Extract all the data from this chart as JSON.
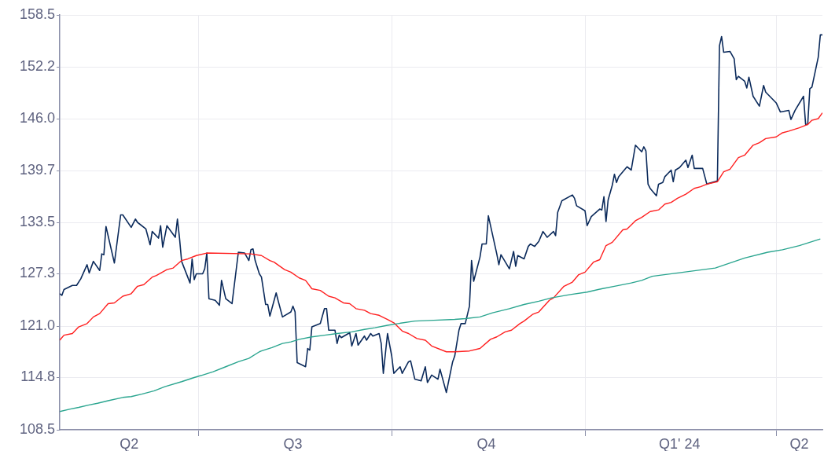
{
  "chart_data": {
    "type": "line",
    "xlim": [
      "2023-04-26",
      "2024-04-23"
    ],
    "xticks": [
      {
        "value": "2023-05-29",
        "label": "Q2"
      },
      {
        "value": "2023-07-01",
        "label": null
      },
      {
        "value": "2023-08-15",
        "label": "Q3"
      },
      {
        "value": "2023-10-01",
        "label": null
      },
      {
        "value": "2023-11-15",
        "label": "Q4"
      },
      {
        "value": "2024-01-01",
        "label": null
      },
      {
        "value": "2024-02-15",
        "label": "Q1' 24"
      },
      {
        "value": "2024-04-01",
        "label": null
      },
      {
        "value": "2024-04-12",
        "label": "Q2"
      }
    ],
    "ylim": [
      108.5,
      158.5
    ],
    "yticks": [
      108.5,
      114.8,
      {
        "value": 121.0,
        "label": "121.0"
      },
      127.3,
      133.5,
      139.7,
      {
        "value": 146.0,
        "label": "146.0"
      },
      152.2,
      158.5
    ],
    "grid": true,
    "legend": false,
    "series": [
      {
        "color": "#2aa58f",
        "x": [
          "2023-04-26",
          "2023-05-01",
          "2023-05-05",
          "2023-05-10",
          "2023-05-14",
          "2023-05-19",
          "2023-05-26",
          "2023-05-30",
          "2023-06-04",
          "2023-06-10",
          "2023-06-15",
          "2023-06-23",
          "2023-06-29",
          "2023-07-03",
          "2023-07-08",
          "2023-07-14",
          "2023-07-20",
          "2023-07-25",
          "2023-07-30",
          "2023-07-31",
          "2023-08-05",
          "2023-08-10",
          "2023-08-14",
          "2023-08-18",
          "2023-08-24",
          "2023-08-30",
          "2023-09-05",
          "2023-09-12",
          "2023-09-18",
          "2023-09-23",
          "2023-09-29",
          "2023-10-04",
          "2023-10-12",
          "2023-10-21",
          "2023-10-31",
          "2023-11-05",
          "2023-11-12",
          "2023-11-18",
          "2023-11-26",
          "2023-12-03",
          "2023-12-10",
          "2023-12-16",
          "2023-12-25",
          "2024-01-02",
          "2024-01-09",
          "2024-01-15",
          "2024-01-23",
          "2024-01-28",
          "2024-02-02",
          "2024-02-17",
          "2024-03-03",
          "2024-03-17",
          "2024-03-28",
          "2024-04-04",
          "2024-04-12",
          "2024-04-22"
        ],
        "values": [
          110.7,
          111.0,
          111.2,
          111.5,
          111.7,
          112.0,
          112.4,
          112.5,
          112.8,
          113.2,
          113.7,
          114.3,
          114.8,
          115.1,
          115.5,
          116.1,
          116.7,
          117.1,
          117.9,
          118.0,
          118.4,
          118.9,
          119.1,
          119.4,
          119.7,
          119.9,
          120.1,
          120.3,
          120.6,
          120.8,
          121.1,
          121.3,
          121.6,
          121.7,
          121.8,
          121.9,
          122.1,
          122.6,
          123.1,
          123.6,
          124.0,
          124.4,
          124.8,
          125.1,
          125.5,
          125.8,
          126.2,
          126.5,
          127.0,
          127.5,
          128.0,
          129.2,
          129.9,
          130.2,
          130.7,
          131.5
        ]
      },
      {
        "color": "#ff1f1f",
        "x": [
          "2023-04-26",
          "2023-04-28",
          "2023-05-02",
          "2023-05-05",
          "2023-05-09",
          "2023-05-12",
          "2023-05-15",
          "2023-05-19",
          "2023-05-22",
          "2023-05-26",
          "2023-05-30",
          "2023-06-02",
          "2023-06-05",
          "2023-06-09",
          "2023-06-11",
          "2023-06-16",
          "2023-06-19",
          "2023-06-23",
          "2023-06-26",
          "2023-06-30",
          "2023-07-05",
          "2023-07-26",
          "2023-07-31",
          "2023-08-04",
          "2023-08-06",
          "2023-08-11",
          "2023-08-14",
          "2023-08-18",
          "2023-08-21",
          "2023-08-24",
          "2023-08-28",
          "2023-09-01",
          "2023-09-04",
          "2023-09-08",
          "2023-09-11",
          "2023-09-14",
          "2023-09-18",
          "2023-09-21",
          "2023-09-25",
          "2023-09-29",
          "2023-10-02",
          "2023-10-06",
          "2023-10-09",
          "2023-10-13",
          "2023-10-17",
          "2023-10-20",
          "2023-10-27",
          "2023-10-31",
          "2023-11-07",
          "2023-11-12",
          "2023-11-17",
          "2023-11-20",
          "2023-11-24",
          "2023-11-27",
          "2023-12-01",
          "2023-12-03",
          "2023-12-07",
          "2023-12-10",
          "2023-12-15",
          "2023-12-17",
          "2023-12-22",
          "2023-12-26",
          "2023-12-29",
          "2024-01-01",
          "2024-01-05",
          "2024-01-08",
          "2024-01-11",
          "2024-01-14",
          "2024-01-19",
          "2024-01-21",
          "2024-01-25",
          "2024-01-28",
          "2024-02-01",
          "2024-02-05",
          "2024-02-08",
          "2024-02-11",
          "2024-02-14",
          "2024-02-18",
          "2024-02-22",
          "2024-02-25",
          "2024-02-28",
          "2024-03-04",
          "2024-03-07",
          "2024-03-10",
          "2024-03-14",
          "2024-03-17",
          "2024-03-21",
          "2024-03-24",
          "2024-03-27",
          "2024-04-01",
          "2024-04-04",
          "2024-04-07",
          "2024-04-12",
          "2024-04-16",
          "2024-04-18",
          "2024-04-21",
          "2024-04-23"
        ],
        "values": [
          119.3,
          119.9,
          120.1,
          120.9,
          121.3,
          122.1,
          122.5,
          123.7,
          123.8,
          124.6,
          124.9,
          125.8,
          126.0,
          126.9,
          127.1,
          127.8,
          128.0,
          128.9,
          129.1,
          129.5,
          129.8,
          129.7,
          129.5,
          128.9,
          128.7,
          127.8,
          127.5,
          126.8,
          126.5,
          125.5,
          125.3,
          124.6,
          124.4,
          123.8,
          123.7,
          123.1,
          122.9,
          122.5,
          122.3,
          121.8,
          121.4,
          120.4,
          120.1,
          119.5,
          119.3,
          118.6,
          117.9,
          117.9,
          118.0,
          118.3,
          119.4,
          119.7,
          120.3,
          120.5,
          121.3,
          121.6,
          122.4,
          122.7,
          124.1,
          124.4,
          125.8,
          126.3,
          127.2,
          127.5,
          128.7,
          129.0,
          130.7,
          131.1,
          132.6,
          132.7,
          133.7,
          134.1,
          134.8,
          135.0,
          135.7,
          135.9,
          136.4,
          136.9,
          137.6,
          137.8,
          138.1,
          138.4,
          139.6,
          139.9,
          141.3,
          141.6,
          142.8,
          143.1,
          143.6,
          143.8,
          144.3,
          144.5,
          144.9,
          145.3,
          145.8,
          146.0,
          146.7
        ]
      },
      {
        "color": "#0b2a5b",
        "x": [
          "2023-04-26",
          "2023-04-27",
          "2023-04-28",
          "2023-05-02",
          "2023-05-04",
          "2023-05-06",
          "2023-05-09",
          "2023-05-10",
          "2023-05-12",
          "2023-05-15",
          "2023-05-16",
          "2023-05-17",
          "2023-05-18",
          "2023-05-22",
          "2023-05-25",
          "2023-05-26",
          "2023-05-30",
          "2023-06-01",
          "2023-06-02",
          "2023-06-06",
          "2023-06-08",
          "2023-06-09",
          "2023-06-12",
          "2023-06-13",
          "2023-06-14",
          "2023-06-16",
          "2023-06-20",
          "2023-06-21",
          "2023-06-22",
          "2023-06-23",
          "2023-06-27",
          "2023-06-28",
          "2023-06-29",
          "2023-06-30",
          "2023-07-03",
          "2023-07-04",
          "2023-07-05",
          "2023-07-06",
          "2023-07-09",
          "2023-07-11",
          "2023-07-12",
          "2023-07-14",
          "2023-07-17",
          "2023-07-20",
          "2023-07-23",
          "2023-07-25",
          "2023-07-26",
          "2023-07-27",
          "2023-07-28",
          "2023-07-30",
          "2023-07-31",
          "2023-08-02",
          "2023-08-03",
          "2023-08-04",
          "2023-08-07",
          "2023-08-08",
          "2023-08-10",
          "2023-08-14",
          "2023-08-15",
          "2023-08-16",
          "2023-08-17",
          "2023-08-21",
          "2023-08-22",
          "2023-08-23",
          "2023-08-24",
          "2023-08-28",
          "2023-08-30",
          "2023-08-31",
          "2023-09-01",
          "2023-09-04",
          "2023-09-05",
          "2023-09-06",
          "2023-09-07",
          "2023-09-11",
          "2023-09-12",
          "2023-09-14",
          "2023-09-15",
          "2023-09-18",
          "2023-09-19",
          "2023-09-21",
          "2023-09-22",
          "2023-09-25",
          "2023-09-26",
          "2023-09-27",
          "2023-09-29",
          "2023-10-01",
          "2023-10-02",
          "2023-10-05",
          "2023-10-06",
          "2023-10-09",
          "2023-10-10",
          "2023-10-12",
          "2023-10-15",
          "2023-10-17",
          "2023-10-18",
          "2023-10-20",
          "2023-10-23",
          "2023-10-24",
          "2023-10-27",
          "2023-10-30",
          "2023-10-31",
          "2023-11-02",
          "2023-11-03",
          "2023-11-05",
          "2023-11-07",
          "2023-11-08",
          "2023-11-09",
          "2023-11-12",
          "2023-11-13",
          "2023-11-15",
          "2023-11-16",
          "2023-11-20",
          "2023-11-21",
          "2023-11-22",
          "2023-11-26",
          "2023-11-28",
          "2023-11-29",
          "2023-11-30",
          "2023-12-03",
          "2023-12-05",
          "2023-12-06",
          "2023-12-08",
          "2023-12-10",
          "2023-12-12",
          "2023-12-14",
          "2023-12-17",
          "2023-12-18",
          "2023-12-19",
          "2023-12-21",
          "2023-12-26",
          "2023-12-27",
          "2023-12-28",
          "2024-01-01",
          "2024-01-02",
          "2024-01-04",
          "2024-01-08",
          "2024-01-09",
          "2024-01-10",
          "2024-01-11",
          "2024-01-12",
          "2024-01-14",
          "2024-01-15",
          "2024-01-16",
          "2024-01-17",
          "2024-01-21",
          "2024-01-23",
          "2024-01-25",
          "2024-01-28",
          "2024-01-29",
          "2024-01-30",
          "2024-01-31",
          "2024-02-01",
          "2024-02-04",
          "2024-02-05",
          "2024-02-07",
          "2024-02-08",
          "2024-02-11",
          "2024-02-12",
          "2024-02-13",
          "2024-02-15",
          "2024-02-18",
          "2024-02-19",
          "2024-02-21",
          "2024-02-22",
          "2024-02-26",
          "2024-02-28",
          "2024-02-29",
          "2024-03-04",
          "2024-03-05",
          "2024-03-06",
          "2024-03-07",
          "2024-03-10",
          "2024-03-12",
          "2024-03-13",
          "2024-03-14",
          "2024-03-17",
          "2024-03-18",
          "2024-03-19",
          "2024-03-21",
          "2024-03-24",
          "2024-03-26",
          "2024-03-27",
          "2024-04-01",
          "2024-04-03",
          "2024-04-07",
          "2024-04-08",
          "2024-04-10",
          "2024-04-14",
          "2024-04-15",
          "2024-04-16",
          "2024-04-17",
          "2024-04-18",
          "2024-04-21",
          "2024-04-22",
          "2024-04-23"
        ],
        "values": [
          124.9,
          124.7,
          125.4,
          125.9,
          125.9,
          126.7,
          128.4,
          127.4,
          128.8,
          127.7,
          129.7,
          129.6,
          133.0,
          128.6,
          134.4,
          134.4,
          132.9,
          133.9,
          133.5,
          132.7,
          130.8,
          132.4,
          131.6,
          133.1,
          130.5,
          133.1,
          131.7,
          133.9,
          131.6,
          128.8,
          126.2,
          129.1,
          126.6,
          127.3,
          127.3,
          127.9,
          129.8,
          124.3,
          124.1,
          123.5,
          126.5,
          124.3,
          123.7,
          129.9,
          129.8,
          128.9,
          130.2,
          130.3,
          128.9,
          127.3,
          126.9,
          123.6,
          123.6,
          122.2,
          125.0,
          124.0,
          122.1,
          122.7,
          123.4,
          122.7,
          116.6,
          116.1,
          118.3,
          118.1,
          120.9,
          121.3,
          123.1,
          123.1,
          120.5,
          120.5,
          118.9,
          119.9,
          119.6,
          120.2,
          118.6,
          120.1,
          118.7,
          119.8,
          119.3,
          120.1,
          119.8,
          120.1,
          118.9,
          115.3,
          120.1,
          117.4,
          115.3,
          116.1,
          115.3,
          116.7,
          116.8,
          114.6,
          114.4,
          116.1,
          114.2,
          115.1,
          114.6,
          115.8,
          113.0,
          116.7,
          117.4,
          120.5,
          121.3,
          121.3,
          123.4,
          128.9,
          126.4,
          129.3,
          130.9,
          130.9,
          134.3,
          129.7,
          128.4,
          129.6,
          127.9,
          130.0,
          128.2,
          129.5,
          129.1,
          130.6,
          130.9,
          130.6,
          131.2,
          132.4,
          131.7,
          132.4,
          131.9,
          134.7,
          136.1,
          136.8,
          136.4,
          135.5,
          134.9,
          133.1,
          134.2,
          135.1,
          135.0,
          136.6,
          133.6,
          136.2,
          138.0,
          139.3,
          138.3,
          139.0,
          140.2,
          139.8,
          142.8,
          142.0,
          142.6,
          142.1,
          138.1,
          137.6,
          136.7,
          138.1,
          138.3,
          139.0,
          139.8,
          138.4,
          139.8,
          140.1,
          141.0,
          140.1,
          141.6,
          140.0,
          140.0,
          138.1,
          138.2,
          138.5,
          154.8,
          155.9,
          154.0,
          154.1,
          153.2,
          150.7,
          151.1,
          150.5,
          149.7,
          151.0,
          148.7,
          147.5,
          150.0,
          149.2,
          147.9,
          146.8,
          147.0,
          145.9,
          147.0,
          148.7,
          145.3,
          145.3,
          149.6,
          149.8,
          153.4,
          156.1,
          156.1
        ]
      }
    ]
  }
}
